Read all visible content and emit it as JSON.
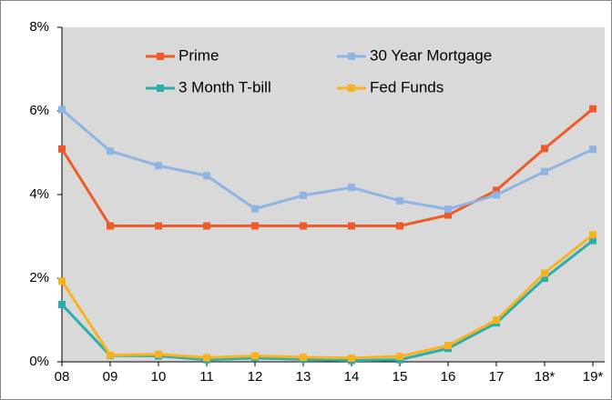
{
  "chart_data": {
    "type": "line",
    "categories": [
      "08",
      "09",
      "10",
      "11",
      "12",
      "13",
      "14",
      "15",
      "16",
      "17",
      "18*",
      "19*"
    ],
    "series": [
      {
        "name": "Prime",
        "color": "#ef5a28",
        "values": [
          5.09,
          3.25,
          3.25,
          3.25,
          3.25,
          3.25,
          3.25,
          3.25,
          3.51,
          4.1,
          5.1,
          6.05
        ]
      },
      {
        "name": "30 Year Mortgage",
        "color": "#8eb4e3",
        "values": [
          6.03,
          5.04,
          4.69,
          4.45,
          3.66,
          3.98,
          4.17,
          3.85,
          3.65,
          3.99,
          4.55,
          5.08
        ]
      },
      {
        "name": "3 Month T-bill",
        "color": "#2aaeaa",
        "values": [
          1.37,
          0.15,
          0.14,
          0.05,
          0.09,
          0.06,
          0.03,
          0.05,
          0.32,
          0.93,
          2.0,
          2.9
        ]
      },
      {
        "name": "Fed Funds",
        "color": "#f9b21f",
        "values": [
          1.93,
          0.16,
          0.18,
          0.1,
          0.14,
          0.11,
          0.09,
          0.13,
          0.39,
          1.0,
          2.12,
          3.04
        ]
      }
    ],
    "ylim": [
      0,
      8
    ],
    "yticks": [
      {
        "value": 0,
        "label": "0%"
      },
      {
        "value": 2,
        "label": "2%"
      },
      {
        "value": 4,
        "label": "4%"
      },
      {
        "value": 6,
        "label": "6%"
      },
      {
        "value": 8,
        "label": "8%"
      }
    ],
    "grid": false
  }
}
